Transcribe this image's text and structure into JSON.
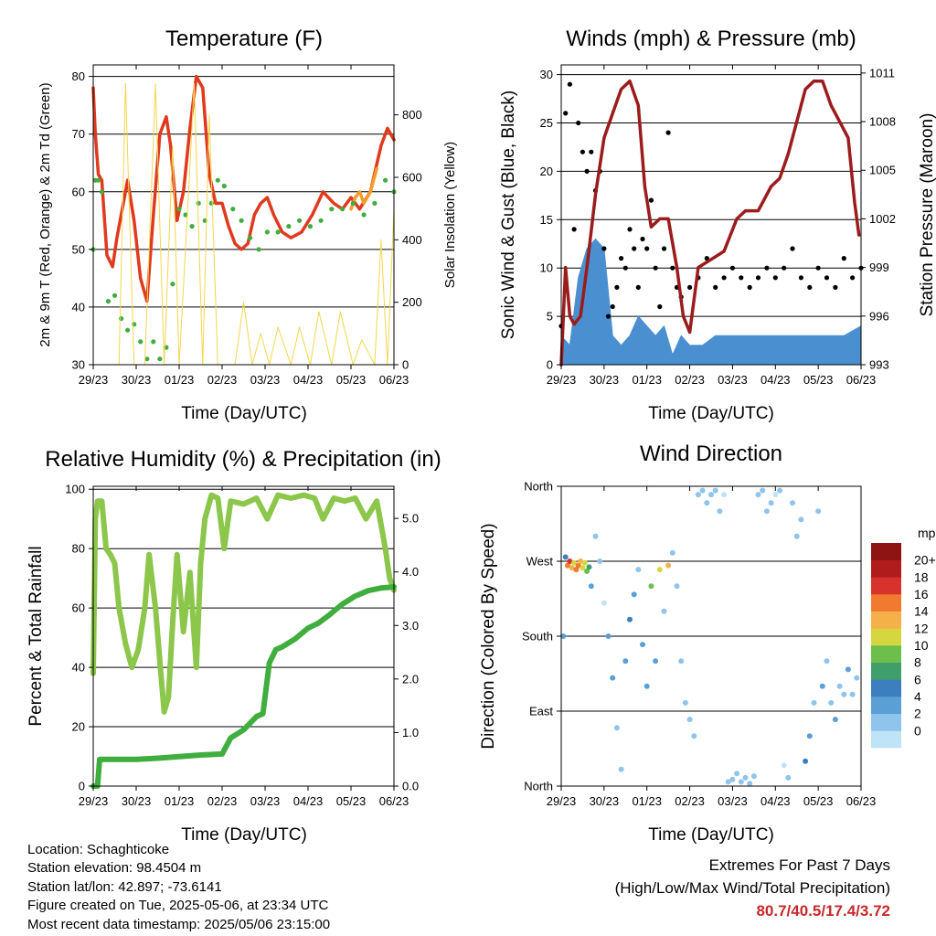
{
  "footer": {
    "location": "Location: Schaghticoke",
    "elevation": "Station elevation: 98.4504 m",
    "latlon": "Station lat/lon: 42.897; -73.6141",
    "created": "Figure created on Tue, 2025-05-06, at 23:34 UTC",
    "recent": "Most recent data timestamp: 2025/05/06 23:15:00"
  },
  "extremes": {
    "title": "Extremes For Past 7 Days",
    "subtitle": "(High/Low/Max Wind/Total Precipitation)",
    "values": "80.7/40.5/17.4/3.72",
    "color": "#c8282c"
  },
  "chart_data": [
    {
      "id": "temperature",
      "type": "line",
      "title": "Temperature (F)",
      "xlabel": "Time (Day/UTC)",
      "ylabel": "2m & 9m T (Red, Orange) & 2m Td (Green)",
      "y2label": "Solar Insolation (Yellow)",
      "x_ticks": [
        "29/23",
        "30/23",
        "01/23",
        "02/23",
        "03/23",
        "04/23",
        "05/23",
        "06/23"
      ],
      "xlim": [
        0,
        7
      ],
      "ylim": [
        30,
        82
      ],
      "y_ticks": [
        30,
        40,
        50,
        60,
        70,
        80
      ],
      "y2lim": [
        0,
        960
      ],
      "y2_ticks": [
        0,
        200,
        400,
        600,
        800
      ],
      "grid": "horizontal",
      "series": [
        {
          "color": "#e03a1e",
          "kind": "line",
          "x": [
            0,
            0.05,
            0.12,
            0.2,
            0.32,
            0.45,
            0.55,
            0.65,
            0.8,
            0.95,
            1.1,
            1.25,
            1.4,
            1.55,
            1.7,
            1.8,
            1.95,
            2.1,
            2.25,
            2.4,
            2.55,
            2.7,
            2.85,
            3.0,
            3.15,
            3.3,
            3.45,
            3.6,
            3.75,
            3.9,
            4.05,
            4.2,
            4.4,
            4.6,
            4.85,
            5.1,
            5.35,
            5.6,
            5.8,
            6.0,
            6.2,
            6.45,
            6.7,
            6.85,
            7.0
          ],
          "y": [
            78,
            70,
            63,
            62,
            49,
            47,
            52,
            56,
            62,
            55,
            45,
            41,
            56,
            70,
            73,
            68,
            55,
            60,
            71,
            80,
            78,
            63,
            58,
            58,
            54,
            51,
            50,
            51,
            56,
            58,
            59,
            56,
            53,
            52,
            53,
            56,
            60,
            58,
            57,
            59,
            57,
            60,
            68,
            71,
            69
          ]
        },
        {
          "color": "#f39c2a",
          "kind": "line",
          "x": [
            6.0,
            6.1,
            6.2,
            6.3,
            6.45,
            6.6
          ],
          "y": [
            57,
            59,
            60,
            58,
            60,
            64
          ]
        },
        {
          "color": "#3fae3f",
          "kind": "dots",
          "x": [
            0,
            0.05,
            0.12,
            0.2,
            0.35,
            0.5,
            0.65,
            0.8,
            0.95,
            1.1,
            1.25,
            1.4,
            1.55,
            1.7,
            1.85,
            2.0,
            2.15,
            2.3,
            2.45,
            2.6,
            2.75,
            2.9,
            3.05,
            3.25,
            3.45,
            3.65,
            3.85,
            4.05,
            4.3,
            4.55,
            4.8,
            5.05,
            5.3,
            5.55,
            5.8,
            6.05,
            6.3,
            6.55,
            6.8,
            7.0
          ],
          "y": [
            50,
            62,
            62,
            60,
            41,
            42,
            38,
            36,
            37,
            34,
            31,
            34,
            31,
            33,
            44,
            57,
            56,
            54,
            58,
            55,
            58,
            62,
            61,
            57,
            55,
            52,
            50,
            53,
            53,
            54,
            55,
            54,
            55,
            57,
            57,
            58,
            56,
            58,
            62,
            60
          ]
        },
        {
          "color": "#f5d64c",
          "kind": "line",
          "axis": "y2",
          "x": [
            0.6,
            0.75,
            0.95,
            1.2,
            1.45,
            1.65,
            1.85,
            2.0,
            2.2,
            2.35,
            2.55,
            2.7,
            2.9,
            3.05,
            3.3,
            3.5,
            3.7,
            3.9,
            4.1,
            4.3,
            4.6,
            4.8,
            5.05,
            5.25,
            5.55,
            5.75,
            6.05,
            6.25,
            6.55,
            6.7,
            6.85,
            7.0
          ],
          "y": [
            0,
            900,
            0,
            0,
            900,
            0,
            700,
            0,
            500,
            900,
            0,
            800,
            0,
            0,
            0,
            200,
            0,
            100,
            0,
            120,
            0,
            120,
            0,
            170,
            0,
            170,
            0,
            80,
            0,
            400,
            0,
            500
          ]
        }
      ]
    },
    {
      "id": "winds",
      "type": "scatter",
      "title": "Winds (mph) & Pressure (mb)",
      "xlabel": "Time (Day/UTC)",
      "ylabel": "Sonic Wind & Gust (Blue, Black)",
      "y2label": "Station Pressure (Maroon)",
      "x_ticks": [
        "29/23",
        "30/23",
        "01/23",
        "02/23",
        "03/23",
        "04/23",
        "05/23",
        "06/23"
      ],
      "xlim": [
        0,
        7
      ],
      "ylim": [
        0,
        31
      ],
      "y_ticks": [
        0,
        5,
        10,
        15,
        20,
        25,
        30
      ],
      "y2lim": [
        993,
        1011.5
      ],
      "y2_ticks": [
        993,
        996,
        999,
        1002,
        1005,
        1008,
        1011
      ],
      "grid": "horizontal",
      "series": [
        {
          "color": "#4a90d0",
          "kind": "band",
          "values_note": "sustained wind",
          "x": [
            0,
            0.2,
            0.4,
            0.6,
            0.8,
            1.0,
            1.2,
            1.4,
            1.6,
            1.8,
            2.0,
            2.2,
            2.4,
            2.6,
            2.8,
            3.0,
            3.3,
            3.6,
            3.9,
            4.2,
            4.5,
            4.8,
            5.1,
            5.4,
            5.7,
            6.0,
            6.3,
            6.6,
            7.0
          ],
          "y": [
            3,
            2,
            9,
            12,
            13,
            12,
            3,
            2,
            3,
            5,
            4,
            3,
            4,
            1,
            3,
            2,
            2,
            3,
            3,
            3,
            3,
            3,
            3,
            3,
            3,
            3,
            3,
            3,
            4
          ]
        },
        {
          "color": "#000000",
          "kind": "dots",
          "values_note": "gust",
          "x": [
            0,
            0.1,
            0.2,
            0.3,
            0.4,
            0.5,
            0.6,
            0.7,
            0.8,
            0.9,
            1.0,
            1.1,
            1.2,
            1.3,
            1.4,
            1.5,
            1.6,
            1.7,
            1.8,
            1.9,
            2.0,
            2.1,
            2.2,
            2.3,
            2.4,
            2.5,
            2.6,
            2.7,
            2.8,
            3.0,
            3.2,
            3.4,
            3.6,
            3.8,
            4.0,
            4.2,
            4.4,
            4.6,
            4.8,
            5.0,
            5.2,
            5.4,
            5.6,
            5.8,
            6.0,
            6.2,
            6.4,
            6.6,
            6.8,
            7.0
          ],
          "y": [
            4,
            26,
            29,
            14,
            25,
            22,
            20,
            22,
            18,
            20,
            12,
            5,
            6,
            8,
            11,
            10,
            14,
            12,
            8,
            13,
            12,
            17,
            10,
            6,
            12,
            24,
            10,
            8,
            7,
            8,
            9,
            11,
            8,
            9,
            10,
            9,
            8,
            9,
            10,
            9,
            10,
            12,
            9,
            8,
            10,
            9,
            8,
            11,
            9,
            10
          ]
        },
        {
          "color": "#9b1c1c",
          "kind": "line",
          "axis": "y2",
          "values_note": "pressure",
          "x": [
            0,
            0.1,
            0.2,
            0.3,
            0.45,
            0.6,
            0.8,
            1.0,
            1.2,
            1.4,
            1.6,
            1.8,
            1.95,
            2.1,
            2.3,
            2.5,
            2.7,
            2.85,
            3.0,
            3.2,
            3.5,
            3.8,
            4.1,
            4.3,
            4.6,
            4.9,
            5.1,
            5.3,
            5.5,
            5.7,
            5.9,
            6.1,
            6.3,
            6.5,
            6.7,
            6.85,
            6.95
          ],
          "y": [
            993,
            999,
            996,
            995.5,
            996,
            999,
            1003.5,
            1007,
            1008.5,
            1010,
            1010.5,
            1009,
            1004,
            1001.5,
            1002,
            1002,
            999,
            996,
            995,
            999,
            999.5,
            1000,
            1002,
            1002.5,
            1002.5,
            1004,
            1004.5,
            1006,
            1008,
            1010,
            1010.5,
            1010.5,
            1009,
            1008,
            1007,
            1003,
            1001
          ]
        }
      ]
    },
    {
      "id": "humidity",
      "type": "line",
      "title": "Relative Humidity (%) & Precipitation (in)",
      "xlabel": "Time (Day/UTC)",
      "ylabel": "Percent & Total Rainfall",
      "x_ticks": [
        "29/23",
        "30/23",
        "01/23",
        "02/23",
        "03/23",
        "04/23",
        "05/23",
        "06/23"
      ],
      "xlim": [
        0,
        7
      ],
      "ylim": [
        0,
        101
      ],
      "y_ticks": [
        0,
        20,
        40,
        60,
        80,
        100
      ],
      "y2lim": [
        0,
        5.6
      ],
      "y2_ticks": [
        "0.0",
        "1.0",
        "2.0",
        "3.0",
        "4.0",
        "5.0"
      ],
      "grid": "horizontal",
      "series": [
        {
          "color": "#8cc64a",
          "kind": "line",
          "values_note": "relative humidity",
          "x": [
            0,
            0.05,
            0.1,
            0.2,
            0.3,
            0.4,
            0.5,
            0.6,
            0.75,
            0.9,
            1.05,
            1.2,
            1.3,
            1.45,
            1.55,
            1.65,
            1.75,
            1.85,
            1.95,
            2.1,
            2.25,
            2.4,
            2.5,
            2.6,
            2.75,
            2.9,
            3.05,
            3.2,
            3.5,
            3.8,
            4.05,
            4.3,
            4.6,
            4.9,
            5.15,
            5.35,
            5.6,
            5.85,
            6.1,
            6.35,
            6.6,
            6.8,
            6.9,
            7.0
          ],
          "y": [
            38,
            90,
            96,
            96,
            80,
            78,
            75,
            60,
            48,
            40,
            46,
            60,
            78,
            60,
            42,
            25,
            30,
            55,
            78,
            52,
            72,
            40,
            75,
            90,
            98,
            97,
            80,
            96,
            95,
            97,
            90,
            98,
            97,
            98,
            97,
            90,
            97,
            96,
            97,
            90,
            96,
            80,
            70,
            66
          ]
        },
        {
          "color": "#3fae3f",
          "kind": "line",
          "axis": "y2",
          "values_note": "total rainfall",
          "x": [
            0,
            0.1,
            0.15,
            0.5,
            1.0,
            1.5,
            2.0,
            2.5,
            3.0,
            3.2,
            3.5,
            3.8,
            3.95,
            4.1,
            4.25,
            4.4,
            4.7,
            5.0,
            5.25,
            5.5,
            5.8,
            6.1,
            6.4,
            6.7,
            7.0
          ],
          "y": [
            0,
            0,
            0.5,
            0.5,
            0.5,
            0.52,
            0.55,
            0.58,
            0.6,
            0.9,
            1.05,
            1.3,
            1.35,
            2.3,
            2.55,
            2.6,
            2.75,
            2.95,
            3.05,
            3.2,
            3.4,
            3.55,
            3.65,
            3.7,
            3.72
          ]
        }
      ]
    },
    {
      "id": "winddir",
      "type": "scatter",
      "title": "Wind Direction",
      "xlabel": "Time (Day/UTC)",
      "ylabel": "Direction (Colored By Speed)",
      "x_ticks": [
        "29/23",
        "30/23",
        "01/23",
        "02/23",
        "03/23",
        "04/23",
        "05/23",
        "06/23"
      ],
      "xlim": [
        0,
        7
      ],
      "ylim": [
        0,
        360
      ],
      "y_ticks": [
        "North",
        "East",
        "South",
        "West",
        "North"
      ],
      "y_tick_values": [
        0,
        90,
        180,
        270,
        360
      ],
      "grid": "horizontal",
      "colorbar": {
        "unit": "mph",
        "labels": [
          "0",
          "2",
          "4",
          "6",
          "8",
          "10",
          "12",
          "14",
          "16",
          "18",
          "20+"
        ],
        "colors": [
          "#bfe3f7",
          "#8fc4ec",
          "#5aa0d6",
          "#3d7fbe",
          "#3f9e6a",
          "#6cbf4b",
          "#d6d640",
          "#f6b04a",
          "#f07a30",
          "#d8322c",
          "#b01c1c",
          "#8e1414"
        ]
      },
      "series": [
        {
          "kind": "dots",
          "values_note": "direction (deg) colored by speed (mph)",
          "x": [
            0.05,
            0.1,
            0.15,
            0.2,
            0.25,
            0.3,
            0.35,
            0.4,
            0.45,
            0.5,
            0.55,
            0.6,
            0.65,
            0.7,
            0.8,
            0.9,
            1.0,
            1.1,
            1.2,
            1.3,
            1.4,
            1.5,
            1.6,
            1.7,
            1.8,
            1.9,
            2.0,
            2.1,
            2.2,
            2.3,
            2.4,
            2.5,
            2.6,
            2.7,
            2.8,
            2.9,
            3.0,
            3.1,
            3.2,
            3.3,
            3.4,
            3.5,
            3.6,
            3.7,
            3.8,
            3.9,
            4.0,
            4.1,
            4.2,
            4.3,
            4.4,
            4.5,
            4.6,
            4.7,
            4.8,
            4.9,
            5.0,
            5.1,
            5.2,
            5.3,
            5.4,
            5.5,
            5.6,
            5.7,
            5.8,
            5.9,
            6.0,
            6.1,
            6.2,
            6.3,
            6.4,
            6.5,
            6.6,
            6.7,
            6.8,
            6.9
          ],
          "y": [
            180,
            275,
            265,
            270,
            262,
            268,
            260,
            265,
            270,
            262,
            268,
            258,
            263,
            240,
            300,
            270,
            220,
            180,
            130,
            70,
            20,
            150,
            200,
            230,
            260,
            170,
            120,
            240,
            150,
            260,
            210,
            265,
            280,
            240,
            150,
            100,
            80,
            60,
            350,
            355,
            340,
            350,
            355,
            330,
            350,
            5,
            8,
            15,
            5,
            10,
            3,
            12,
            350,
            355,
            330,
            340,
            350,
            355,
            25,
            10,
            340,
            300,
            320,
            30,
            60,
            100,
            330,
            120,
            150,
            100,
            80,
            120,
            110,
            140,
            110,
            130
          ],
          "speed": [
            4,
            6,
            16,
            18,
            14,
            12,
            16,
            17,
            14,
            13,
            12,
            10,
            8,
            4,
            3,
            2,
            1,
            4,
            5,
            3,
            2,
            4,
            6,
            5,
            3,
            4,
            5,
            10,
            4,
            12,
            3,
            15,
            3,
            2,
            3,
            3,
            2,
            2,
            2,
            3,
            2,
            3,
            2,
            2,
            1,
            3,
            2,
            3,
            2,
            3,
            2,
            3,
            2,
            3,
            2,
            2,
            1,
            2,
            1,
            3,
            2,
            3,
            2,
            6,
            4,
            2,
            3,
            4,
            3,
            2,
            4,
            2,
            3,
            4,
            3,
            2
          ]
        }
      ]
    }
  ]
}
